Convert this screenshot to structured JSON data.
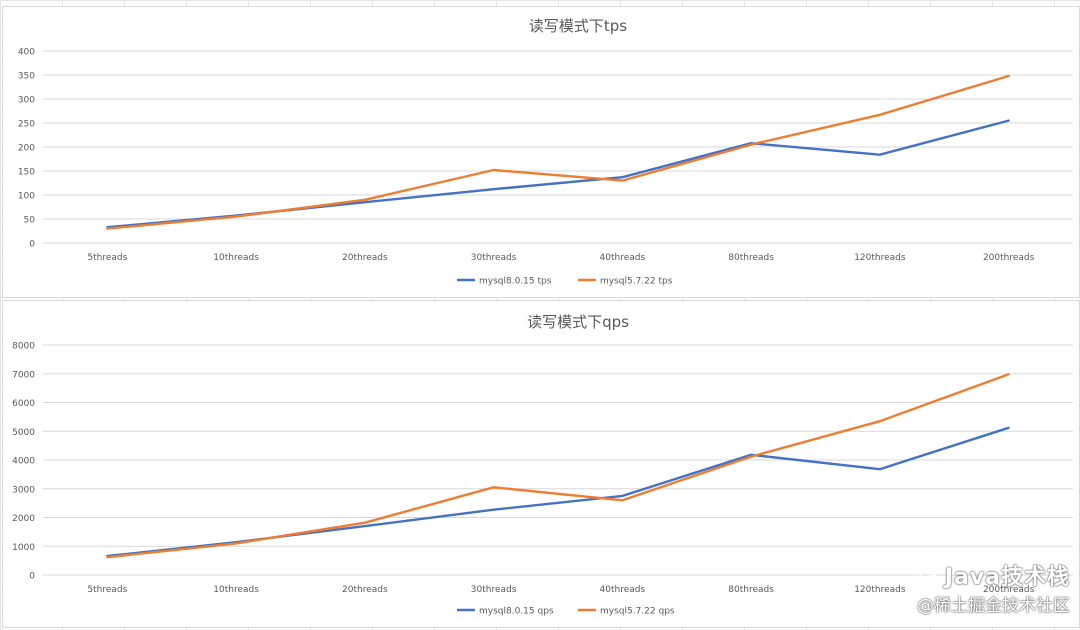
{
  "chart_data": [
    {
      "type": "line",
      "title": "读写模式下tps",
      "categories": [
        "5threads",
        "10threads",
        "20threads",
        "30threads",
        "40threads",
        "80threads",
        "120threads",
        "200threads"
      ],
      "ylim": [
        0,
        400
      ],
      "yticks": [
        0,
        50,
        100,
        150,
        200,
        250,
        300,
        350,
        400
      ],
      "grid": true,
      "legend": "bottom",
      "series": [
        {
          "name": "mysql8.0.15 tps",
          "color": "#4472c4",
          "values": [
            33,
            57,
            85,
            112,
            137,
            208,
            184,
            255
          ]
        },
        {
          "name": "mysql5.7.22 tps",
          "color": "#ed7d31",
          "values": [
            30,
            55,
            90,
            152,
            130,
            205,
            267,
            348
          ]
        }
      ]
    },
    {
      "type": "line",
      "title": "读写模式下qps",
      "categories": [
        "5threads",
        "10threads",
        "20threads",
        "30threads",
        "40threads",
        "80threads",
        "120threads",
        "200threads"
      ],
      "ylim": [
        0,
        8000
      ],
      "yticks": [
        0,
        1000,
        2000,
        3000,
        4000,
        5000,
        6000,
        7000,
        8000
      ],
      "grid": true,
      "legend": "bottom",
      "series": [
        {
          "name": "mysql8.0.15 qps",
          "color": "#4472c4",
          "values": [
            660,
            1140,
            1700,
            2270,
            2750,
            4180,
            3680,
            5120
          ]
        },
        {
          "name": "mysql5.7.22 qps",
          "color": "#ed7d31",
          "values": [
            620,
            1100,
            1820,
            3050,
            2600,
            4120,
            5350,
            6980
          ]
        }
      ]
    }
  ],
  "watermark": {
    "line1": "Java技术栈",
    "line2": "@稀土掘金技术社区",
    "icon": "wechat-icon"
  }
}
